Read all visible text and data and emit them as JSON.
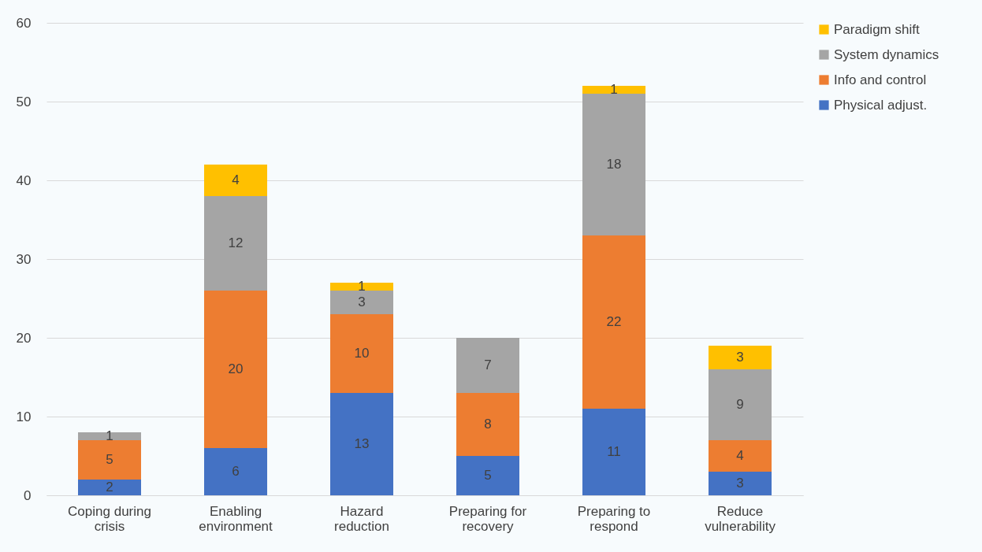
{
  "chart_data": {
    "type": "bar",
    "stacked": true,
    "categories": [
      "Coping during crisis",
      "Enabling environment",
      "Hazard reduction",
      "Preparing for recovery",
      "Preparing to respond",
      "Reduce vulnerability"
    ],
    "series": [
      {
        "name": "Physical adjust.",
        "color": "#4472c4",
        "values": [
          2,
          6,
          13,
          5,
          11,
          3
        ]
      },
      {
        "name": "Info and control",
        "color": "#ed7d31",
        "values": [
          5,
          20,
          10,
          8,
          22,
          4
        ]
      },
      {
        "name": "System dynamics",
        "color": "#a5a5a5",
        "values": [
          1,
          12,
          3,
          7,
          18,
          9
        ]
      },
      {
        "name": "Paradigm shift",
        "color": "#ffc000",
        "values": [
          null,
          4,
          1,
          null,
          1,
          3
        ]
      }
    ],
    "ylim": [
      0,
      60
    ],
    "yticks": [
      0,
      10,
      20,
      30,
      40,
      50,
      60
    ],
    "grid": "y",
    "legend": "right",
    "data_labels": true
  }
}
